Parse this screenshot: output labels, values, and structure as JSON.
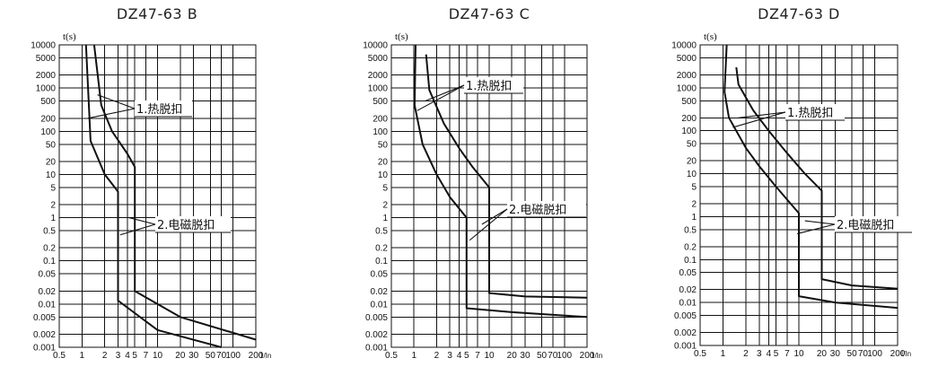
{
  "chart_data": [
    {
      "type": "line",
      "title": "DZ47-63 B",
      "ylabel": "t(s)",
      "xlabel": "",
      "y_scale": "log",
      "x_scale": "log",
      "ylim": [
        0.001,
        10000
      ],
      "xlim": [
        0.5,
        200
      ],
      "y_ticks": [
        10000,
        5000,
        2000,
        1000,
        500,
        200,
        100,
        50,
        20,
        10,
        5,
        2,
        1,
        0.5,
        0.2,
        0.1,
        0.05,
        0.02,
        0.01,
        0.005,
        0.002,
        0.001
      ],
      "y_tick_labels": [
        "10000",
        "5000",
        "2000",
        "1000",
        "500",
        "200",
        "100",
        "50",
        "20",
        "10",
        "5",
        "2",
        "1",
        "0.5",
        "0.2",
        "0.1",
        "0.05",
        "0.02",
        "0.01",
        "0.005",
        "0.002",
        "0.001"
      ],
      "x_ticks": [
        0.5,
        1,
        2,
        3,
        4,
        5,
        7,
        10,
        20,
        30,
        50,
        70,
        100,
        200
      ],
      "x_tick_labels": [
        "0.5",
        "1",
        "2",
        "3",
        "4",
        "5",
        "7",
        "10",
        "20",
        "30",
        "50",
        "70",
        "100",
        "200",
        "1/In"
      ],
      "grid": true,
      "series": [
        {
          "values": [
            [
              1.13,
              10000
            ],
            [
              1.3,
              60
            ],
            [
              2,
              10
            ],
            [
              3,
              4
            ],
            [
              3,
              0.012
            ],
            [
              10,
              0.0025
            ],
            [
              70,
              0.001
            ]
          ]
        },
        {
          "values": [
            [
              1.45,
              10000
            ],
            [
              1.8,
              400
            ],
            [
              2.5,
              100
            ],
            [
              4,
              30
            ],
            [
              5,
              15
            ],
            [
              5,
              0.02
            ],
            [
              20,
              0.005
            ],
            [
              200,
              0.0015
            ]
          ]
        }
      ],
      "annotations": [
        {
          "text": "1.热脱扣",
          "at": [
            1.5,
            300
          ],
          "targets": [
            [
              1.6,
              700
            ],
            [
              1.2,
              200
            ]
          ]
        },
        {
          "text": "2.电磁脱扣",
          "at": [
            4.8,
            0.75
          ],
          "targets": [
            [
              4.2,
              1
            ],
            [
              3.2,
              0.4
            ]
          ]
        }
      ]
    },
    {
      "type": "line",
      "title": "DZ47-63 C",
      "ylabel": "t(s)",
      "xlabel": "",
      "y_scale": "log",
      "x_scale": "log",
      "ylim": [
        0.001,
        10000
      ],
      "xlim": [
        0.5,
        200
      ],
      "y_ticks": [
        10000,
        5000,
        2000,
        1000,
        500,
        200,
        100,
        50,
        20,
        10,
        5,
        2,
        1,
        0.5,
        0.2,
        0.1,
        0.05,
        0.02,
        0.01,
        0.005,
        0.002,
        0.001
      ],
      "y_tick_labels": [
        "10000",
        "5000",
        "2000",
        "1000",
        "500",
        "200",
        "100",
        "50",
        "20",
        "10",
        "5",
        "2",
        "1",
        "0.5",
        "0.2",
        "0.1",
        "0.05",
        "0.02",
        "0.01",
        "0.005",
        "0.002",
        "0.001"
      ],
      "x_ticks": [
        0.5,
        1,
        2,
        3,
        4,
        5,
        7,
        10,
        20,
        30,
        50,
        70,
        100,
        200
      ],
      "x_tick_labels": [
        "0.5",
        "1",
        "2",
        "3",
        "4",
        "5",
        "7",
        "10",
        "20",
        "30",
        "50",
        "70",
        "100",
        "200",
        "1/In"
      ],
      "grid": true,
      "series": [
        {
          "values": [
            [
              1.05,
              10000
            ],
            [
              1.02,
              400
            ],
            [
              1.3,
              50
            ],
            [
              2,
              10
            ],
            [
              3,
              3
            ],
            [
              5,
              1
            ],
            [
              5,
              0.008
            ],
            [
              20,
              0.0065
            ],
            [
              200,
              0.005
            ]
          ]
        },
        {
          "values": [
            [
              1.45,
              6000
            ],
            [
              1.6,
              900
            ],
            [
              2.5,
              150
            ],
            [
              4,
              40
            ],
            [
              6,
              15
            ],
            [
              10,
              5
            ],
            [
              10,
              0.018
            ],
            [
              30,
              0.015
            ],
            [
              200,
              0.014
            ]
          ]
        }
      ],
      "annotations": [
        {
          "text": "1.热脱扣",
          "at": [
            2.6,
            1000
          ],
          "targets": [
            [
              1.4,
              500
            ],
            [
              1.1,
              300
            ]
          ]
        },
        {
          "text": "2.电磁脱扣",
          "at": [
            10,
            2
          ],
          "targets": [
            [
              8,
              0.7
            ],
            [
              5.5,
              0.3
            ]
          ]
        }
      ]
    },
    {
      "type": "line",
      "title": "DZ47-63 D",
      "ylabel": "t(s)",
      "xlabel": "",
      "y_scale": "log",
      "x_scale": "log",
      "ylim": [
        0.001,
        10000
      ],
      "xlim": [
        0.5,
        200
      ],
      "y_ticks": [
        10000,
        5000,
        2000,
        1000,
        500,
        200,
        100,
        50,
        20,
        10,
        5,
        2,
        1,
        0.5,
        0.2,
        0.1,
        0.05,
        0.02,
        0.01,
        0.005,
        0.002,
        0.001
      ],
      "y_tick_labels": [
        "10000",
        "5000",
        "2000",
        "1000",
        "500",
        "200",
        "100",
        "50",
        "20",
        "10",
        "5",
        "2",
        "1",
        "0.5",
        "0.2",
        "0.1",
        "0.05",
        "0.02",
        "0.01",
        "0.005",
        "0.002",
        "0.001"
      ],
      "x_ticks": [
        0.5,
        1,
        2,
        3,
        4,
        5,
        7,
        10,
        20,
        30,
        50,
        70,
        100,
        200
      ],
      "x_tick_labels": [
        "0.5",
        "1",
        "2",
        "3",
        "4",
        "5",
        "7",
        "10",
        "20",
        "30",
        "50",
        "70",
        "100",
        "200",
        "I/In"
      ],
      "grid": true,
      "series": [
        {
          "values": [
            [
              1.12,
              10000
            ],
            [
              1.05,
              800
            ],
            [
              1.2,
              200
            ],
            [
              2,
              40
            ],
            [
              3,
              15
            ],
            [
              5,
              5
            ],
            [
              10,
              1.2
            ],
            [
              10,
              0.014
            ],
            [
              30,
              0.01
            ],
            [
              200,
              0.0075
            ]
          ]
        },
        {
          "values": [
            [
              1.5,
              3000
            ],
            [
              1.6,
              1200
            ],
            [
              2.5,
              300
            ],
            [
              4,
              100
            ],
            [
              7,
              30
            ],
            [
              12,
              10
            ],
            [
              20,
              4
            ],
            [
              20,
              0.035
            ],
            [
              50,
              0.025
            ],
            [
              200,
              0.021
            ]
          ]
        }
      ],
      "annotations": [
        {
          "text": "1.热脱扣",
          "at": [
            3,
            350
          ],
          "targets": [
            [
              1.6,
              200
            ],
            [
              1.35,
              120
            ]
          ]
        },
        {
          "text": "2.电磁脱扣",
          "at": [
            21,
            0.9
          ],
          "targets": [
            [
              12,
              0.8
            ],
            [
              9.5,
              0.4
            ]
          ]
        }
      ]
    }
  ]
}
